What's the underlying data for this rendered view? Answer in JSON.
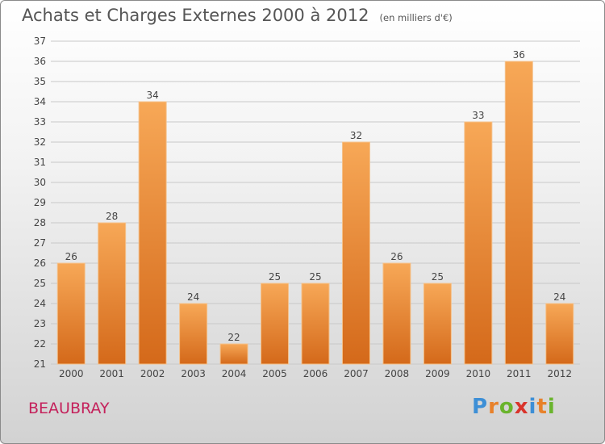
{
  "header": {
    "title": "Achats et Charges Externes 2000 à 2012",
    "subtitle": "(en milliers d'€)"
  },
  "footer": {
    "commune": "BEAUBRAY",
    "brand": "Proxiti",
    "brand_letters": [
      {
        "char": "P",
        "color": "#3d8fd6"
      },
      {
        "char": "r",
        "color": "#e8812a"
      },
      {
        "char": "o",
        "color": "#6ab42d"
      },
      {
        "char": "x",
        "color": "#d9342b"
      },
      {
        "char": "i",
        "color": "#3d8fd6"
      },
      {
        "char": "t",
        "color": "#e8812a"
      },
      {
        "char": "i",
        "color": "#6ab42d"
      }
    ]
  },
  "colors": {
    "bar_top": "#f7a857",
    "bar_bottom": "#d4691a",
    "grid": "#c8c8c8",
    "axis_text": "#444444",
    "commune": "#c4215b"
  },
  "chart_data": {
    "type": "bar",
    "title": "Achats et Charges Externes 2000 à 2012",
    "subtitle": "(en milliers d'€)",
    "categories": [
      "2000",
      "2001",
      "2002",
      "2003",
      "2004",
      "2005",
      "2006",
      "2007",
      "2008",
      "2009",
      "2010",
      "2011",
      "2012"
    ],
    "values": [
      26,
      28,
      34,
      24,
      22,
      25,
      25,
      32,
      26,
      25,
      33,
      36,
      24
    ],
    "ylim": [
      21,
      37
    ],
    "yticks": [
      21,
      22,
      23,
      24,
      25,
      26,
      27,
      28,
      29,
      30,
      31,
      32,
      33,
      34,
      35,
      36,
      37
    ],
    "grid": true,
    "data_labels": true,
    "xlabel": "",
    "ylabel": ""
  }
}
